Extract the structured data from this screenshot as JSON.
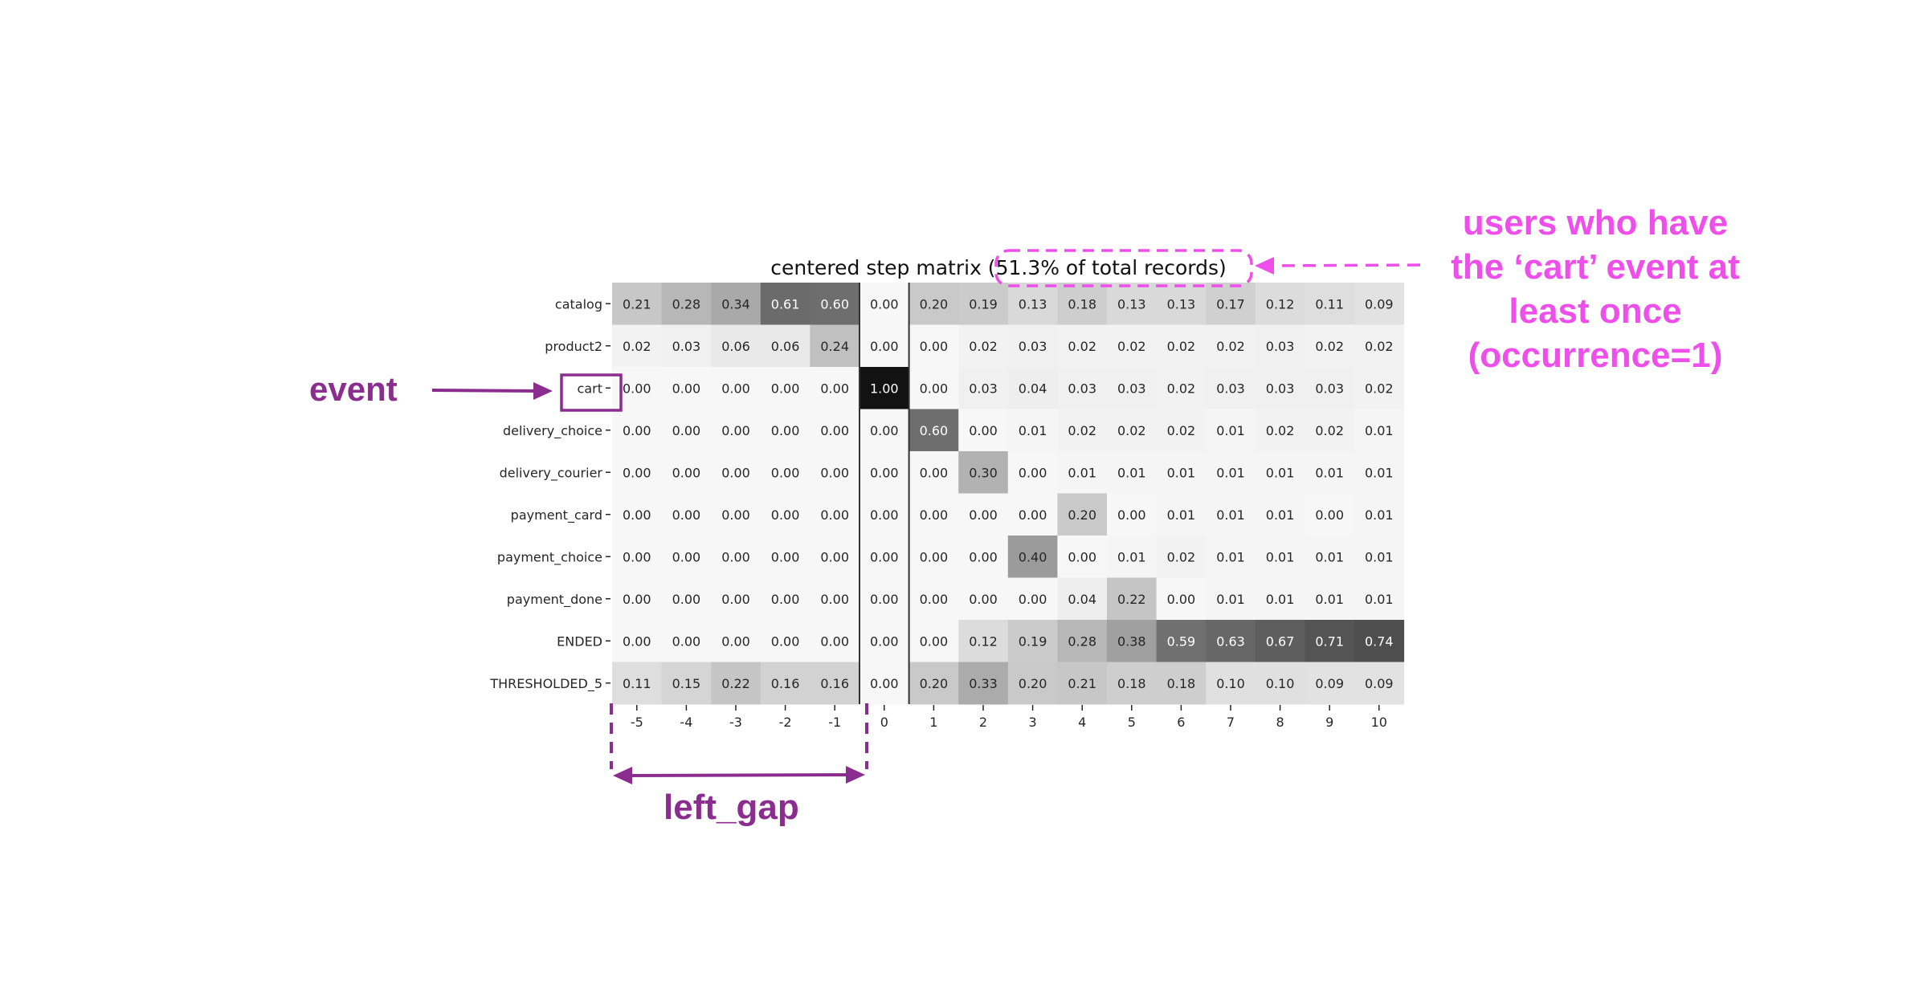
{
  "chart_data": {
    "type": "heatmap",
    "title": "centered step matrix (51.3% of total records)",
    "rows": [
      "catalog",
      "product2",
      "cart",
      "delivery_choice",
      "delivery_courier",
      "payment_card",
      "payment_choice",
      "payment_done",
      "ENDED",
      "THRESHOLDED_5"
    ],
    "columns": [
      "-5",
      "-4",
      "-3",
      "-2",
      "-1",
      "0",
      "1",
      "2",
      "3",
      "4",
      "5",
      "6",
      "7",
      "8",
      "9",
      "10"
    ],
    "values": [
      [
        0.21,
        0.28,
        0.34,
        0.61,
        0.6,
        0.0,
        0.2,
        0.19,
        0.13,
        0.18,
        0.13,
        0.13,
        0.17,
        0.12,
        0.11,
        0.09
      ],
      [
        0.02,
        0.03,
        0.06,
        0.06,
        0.24,
        0.0,
        0.0,
        0.02,
        0.03,
        0.02,
        0.02,
        0.02,
        0.02,
        0.03,
        0.02,
        0.02
      ],
      [
        0.0,
        0.0,
        0.0,
        0.0,
        0.0,
        1.0,
        0.0,
        0.03,
        0.04,
        0.03,
        0.03,
        0.02,
        0.03,
        0.03,
        0.03,
        0.02
      ],
      [
        0.0,
        0.0,
        0.0,
        0.0,
        0.0,
        0.0,
        0.6,
        0.0,
        0.01,
        0.02,
        0.02,
        0.02,
        0.01,
        0.02,
        0.02,
        0.01
      ],
      [
        0.0,
        0.0,
        0.0,
        0.0,
        0.0,
        0.0,
        0.0,
        0.3,
        0.0,
        0.01,
        0.01,
        0.01,
        0.01,
        0.01,
        0.01,
        0.01
      ],
      [
        0.0,
        0.0,
        0.0,
        0.0,
        0.0,
        0.0,
        0.0,
        0.0,
        0.0,
        0.2,
        0.0,
        0.01,
        0.01,
        0.01,
        0.0,
        0.01
      ],
      [
        0.0,
        0.0,
        0.0,
        0.0,
        0.0,
        0.0,
        0.0,
        0.0,
        0.4,
        0.0,
        0.01,
        0.02,
        0.01,
        0.01,
        0.01,
        0.01
      ],
      [
        0.0,
        0.0,
        0.0,
        0.0,
        0.0,
        0.0,
        0.0,
        0.0,
        0.0,
        0.04,
        0.22,
        0.0,
        0.01,
        0.01,
        0.01,
        0.01
      ],
      [
        0.0,
        0.0,
        0.0,
        0.0,
        0.0,
        0.0,
        0.0,
        0.12,
        0.19,
        0.28,
        0.38,
        0.59,
        0.63,
        0.67,
        0.71,
        0.74
      ],
      [
        0.11,
        0.15,
        0.22,
        0.16,
        0.16,
        0.0,
        0.2,
        0.33,
        0.2,
        0.21,
        0.18,
        0.18,
        0.1,
        0.1,
        0.09,
        0.09
      ]
    ],
    "color_scale": "greys",
    "value_range": [
      0,
      1
    ]
  },
  "annotations": {
    "event_label": "event",
    "left_gap_label": "left_gap",
    "note_lines": [
      "users who have",
      "the ‘cart’ event at",
      "least once",
      "(occurrence=1)"
    ],
    "highlight_row": "cart",
    "highlight_title_part": "(51.3% of total records)",
    "gap_from_column": "-5",
    "gap_to_column": "-1"
  },
  "colors": {
    "annotation_purple": "#8B2D8E",
    "annotation_magenta": "#EE4FEA"
  }
}
